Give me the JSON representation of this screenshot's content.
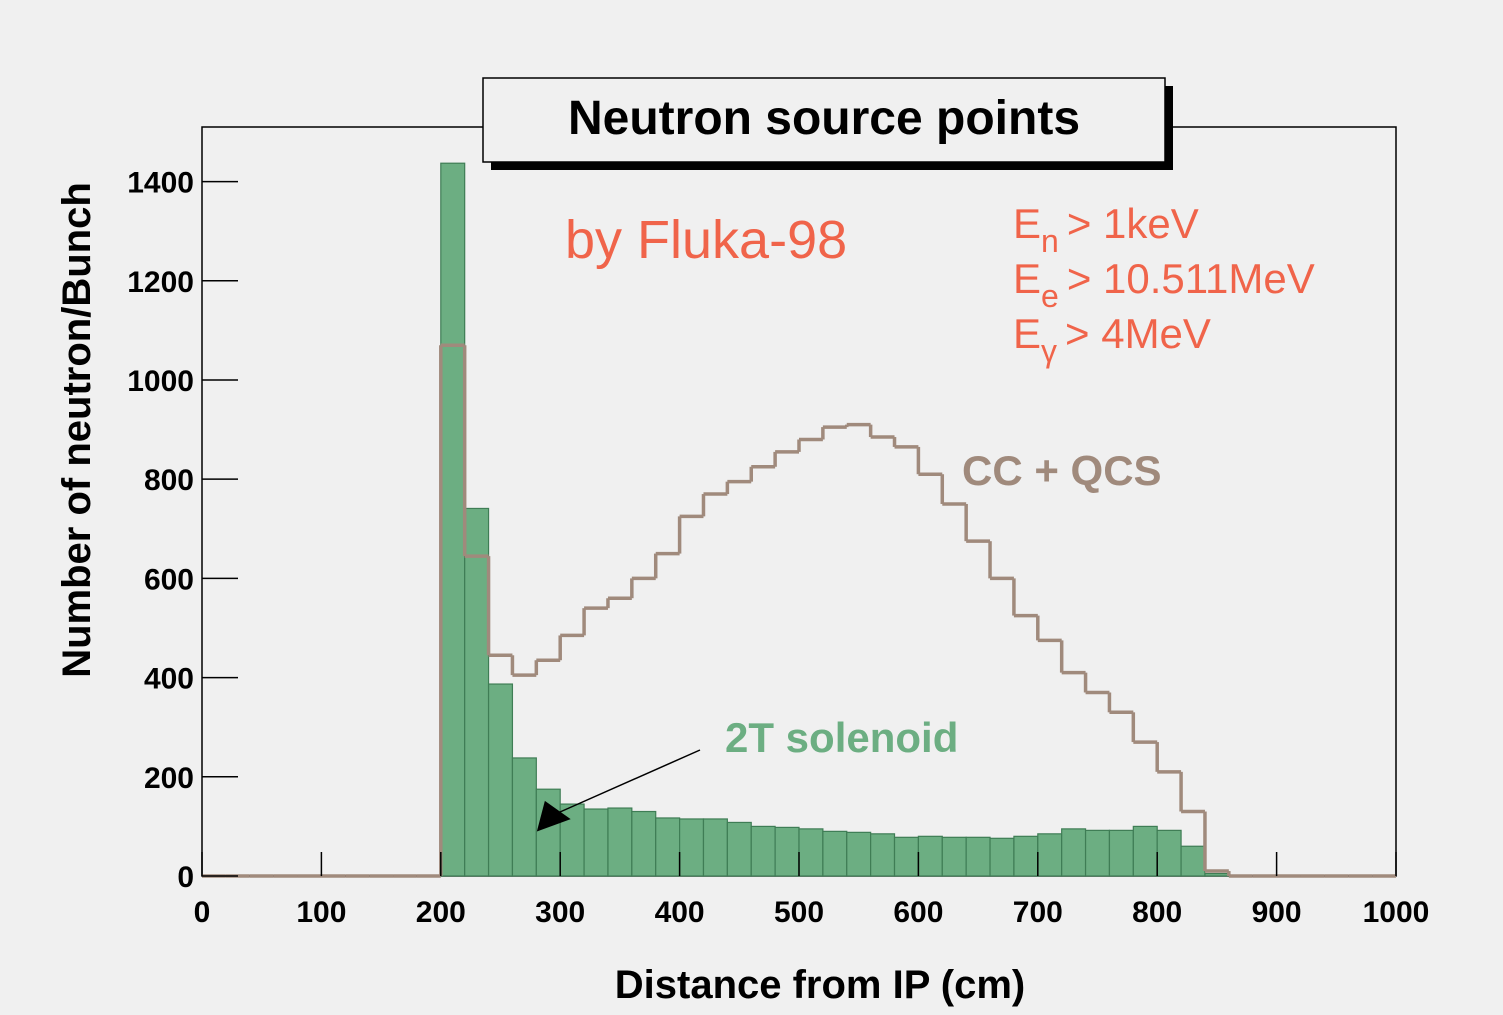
{
  "chart_data": {
    "type": "histogram",
    "title": "Neutron source points",
    "subtitle": "by Fluka-98",
    "xlabel": "Distance from IP (cm)",
    "ylabel": "Number of neutron/Bunch",
    "cuts": [
      {
        "symbol": "E",
        "subscript": "n",
        "text": "> 1keV"
      },
      {
        "symbol": "E",
        "subscript": "e",
        "text": "> 10.511MeV"
      },
      {
        "symbol": "E",
        "subscript": "γ",
        "text": "> 4MeV"
      }
    ],
    "bins": [
      0,
      20,
      40,
      60,
      80,
      100,
      120,
      140,
      160,
      180,
      200,
      220,
      240,
      260,
      280,
      300,
      320,
      340,
      360,
      380,
      400,
      420,
      440,
      460,
      480,
      500,
      520,
      540,
      560,
      580,
      600,
      620,
      640,
      660,
      680,
      700,
      720,
      740,
      760,
      780,
      800,
      820,
      840,
      860,
      880,
      900,
      920,
      940,
      960,
      980,
      1000
    ],
    "series": [
      {
        "name": "2T solenoid",
        "color": "#6cae82",
        "style": "fill",
        "values": [
          0,
          0,
          0,
          0,
          0,
          0,
          0,
          0,
          0,
          0,
          1437,
          741,
          387,
          238,
          175,
          145,
          135,
          137,
          130,
          117,
          115,
          115,
          108,
          100,
          98,
          95,
          90,
          88,
          85,
          78,
          80,
          78,
          78,
          76,
          80,
          85,
          95,
          92,
          92,
          100,
          92,
          60,
          5,
          0,
          0,
          0,
          0,
          0,
          0,
          0
        ]
      },
      {
        "name": "CC + QCS",
        "color": "#a08a7c",
        "style": "step",
        "values": [
          0,
          0,
          0,
          0,
          0,
          0,
          0,
          0,
          0,
          0,
          1070,
          645,
          445,
          405,
          435,
          485,
          540,
          560,
          600,
          650,
          725,
          770,
          795,
          825,
          855,
          880,
          905,
          910,
          885,
          865,
          810,
          750,
          675,
          600,
          525,
          475,
          410,
          370,
          330,
          270,
          210,
          130,
          10,
          0,
          0,
          0,
          0,
          0,
          0,
          0
        ]
      }
    ],
    "xlim": [
      0,
      1000
    ],
    "xticks": [
      0,
      100,
      200,
      300,
      400,
      500,
      600,
      700,
      800,
      900,
      1000
    ],
    "ylim": [
      0,
      1510
    ],
    "yticks": [
      0,
      200,
      400,
      600,
      800,
      1000,
      1200,
      1400
    ],
    "annotation_color": "#f0644a"
  }
}
